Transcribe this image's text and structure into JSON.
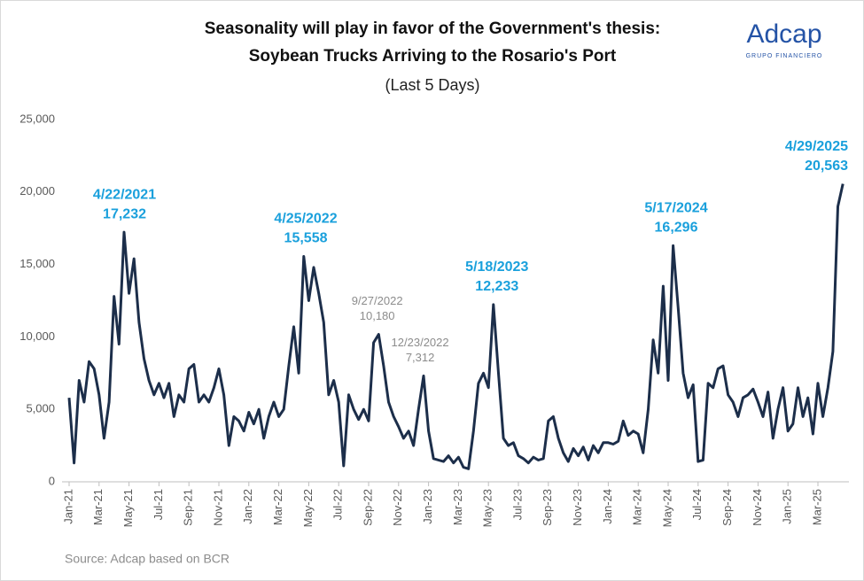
{
  "chart_data": {
    "type": "line",
    "title": [
      "Seasonality will play in favor of the Government's thesis:",
      "Soybean Trucks Arriving to the Rosario's Port"
    ],
    "subtitle": "(Last 5 Days)",
    "logo": {
      "name": "Adcap",
      "tagline": "GRUPO FINANCIERO"
    },
    "source": "Source: Adcap based on BCR",
    "categories": [
      "Jan-21",
      null,
      null,
      null,
      null,
      null,
      "Mar-21",
      null,
      null,
      null,
      null,
      null,
      "May-21",
      null,
      null,
      null,
      null,
      null,
      "Jul-21",
      null,
      null,
      null,
      null,
      null,
      "Sep-21",
      null,
      null,
      null,
      null,
      null,
      "Nov-21",
      null,
      null,
      null,
      null,
      null,
      "Jan-22",
      null,
      null,
      null,
      null,
      null,
      "Mar-22",
      null,
      null,
      null,
      null,
      null,
      "May-22",
      null,
      null,
      null,
      null,
      null,
      "Jul-22",
      null,
      null,
      null,
      null,
      null,
      "Sep-22",
      null,
      null,
      null,
      null,
      null,
      "Nov-22",
      null,
      null,
      null,
      null,
      null,
      "Jan-23",
      null,
      null,
      null,
      null,
      null,
      "Mar-23",
      null,
      null,
      null,
      null,
      null,
      "May-23",
      null,
      null,
      null,
      null,
      null,
      "Jul-23",
      null,
      null,
      null,
      null,
      null,
      "Sep-23",
      null,
      null,
      null,
      null,
      null,
      "Nov-23",
      null,
      null,
      null,
      null,
      null,
      "Jan-24",
      null,
      null,
      null,
      null,
      null,
      "Mar-24",
      null,
      null,
      null,
      null,
      null,
      "May-24",
      null,
      null,
      null,
      null,
      null,
      "Jul-24",
      null,
      null,
      null,
      null,
      null,
      "Sep-24",
      null,
      null,
      null,
      null,
      null,
      "Nov-24",
      null,
      null,
      null,
      null,
      null,
      "Jan-25",
      null,
      null,
      null,
      null,
      null,
      "Mar-25",
      null,
      null,
      null,
      null,
      null
    ],
    "series": [
      {
        "name": "Soybean Trucks",
        "color": "#1c2e4a",
        "values": [
          5800,
          1300,
          7000,
          5500,
          8300,
          7800,
          6000,
          3000,
          5500,
          12800,
          9500,
          17232,
          13000,
          15400,
          11000,
          8500,
          7000,
          6000,
          6800,
          5800,
          6800,
          4500,
          6000,
          5500,
          7800,
          8100,
          5500,
          6000,
          5500,
          6500,
          7800,
          6000,
          2500,
          4500,
          4200,
          3500,
          4800,
          4000,
          5000,
          3000,
          4500,
          5500,
          4500,
          5000,
          8000,
          10700,
          7500,
          15558,
          12500,
          14800,
          13000,
          11000,
          6000,
          7000,
          5500,
          1100,
          6000,
          5000,
          4300,
          5000,
          4200,
          9600,
          10180,
          8000,
          5500,
          4500,
          3800,
          3000,
          3500,
          2500,
          5000,
          7312,
          3500,
          1600,
          1500,
          1400,
          1800,
          1300,
          1700,
          1000,
          900,
          3500,
          6800,
          7500,
          6500,
          12233,
          7500,
          3000,
          2500,
          2700,
          1800,
          1600,
          1300,
          1700,
          1500,
          1600,
          4200,
          4500,
          3000,
          2000,
          1400,
          2300,
          1800,
          2400,
          1500,
          2500,
          2000,
          2700,
          2700,
          2600,
          2800,
          4200,
          3200,
          3500,
          3300,
          2000,
          5000,
          9800,
          7500,
          13500,
          7000,
          16296,
          12000,
          7500,
          5800,
          6700,
          1400,
          1500,
          6800,
          6500,
          7800,
          8000,
          6000,
          5500,
          4500,
          5800,
          6000,
          6400,
          5500,
          4500,
          6200,
          3000,
          5000,
          6500,
          3500,
          4000,
          6500,
          4500,
          5800,
          3300,
          6800,
          4500,
          6500,
          9000,
          19000,
          20563
        ]
      }
    ],
    "ylim": [
      0,
      25000
    ],
    "yticks": [
      0,
      {
        "value": 5000,
        "label": "5,000"
      },
      {
        "value": 10000,
        "label": "10,000"
      },
      {
        "value": 15000,
        "label": "15,000"
      },
      {
        "value": 20000,
        "label": "20,000"
      },
      {
        "value": 25000,
        "label": "25,000"
      }
    ],
    "annotations": [
      {
        "date": "4/22/2021",
        "value": 17232,
        "label": "17,232",
        "color": "#1aa0dc"
      },
      {
        "date": "4/25/2022",
        "value": 15558,
        "label": "15,558",
        "color": "#1aa0dc"
      },
      {
        "date": "9/27/2022",
        "value": 10180,
        "label": "10,180",
        "color": "#8c8c8c"
      },
      {
        "date": "12/23/2022",
        "value": 7312,
        "label": "7,312",
        "color": "#8c8c8c"
      },
      {
        "date": "5/18/2023",
        "value": 12233,
        "label": "12,233",
        "color": "#1aa0dc"
      },
      {
        "date": "5/17/2024",
        "value": 16296,
        "label": "16,296",
        "color": "#1aa0dc"
      },
      {
        "date": "4/29/2025",
        "value": 20563,
        "label": "20,563",
        "color": "#1aa0dc"
      }
    ]
  }
}
